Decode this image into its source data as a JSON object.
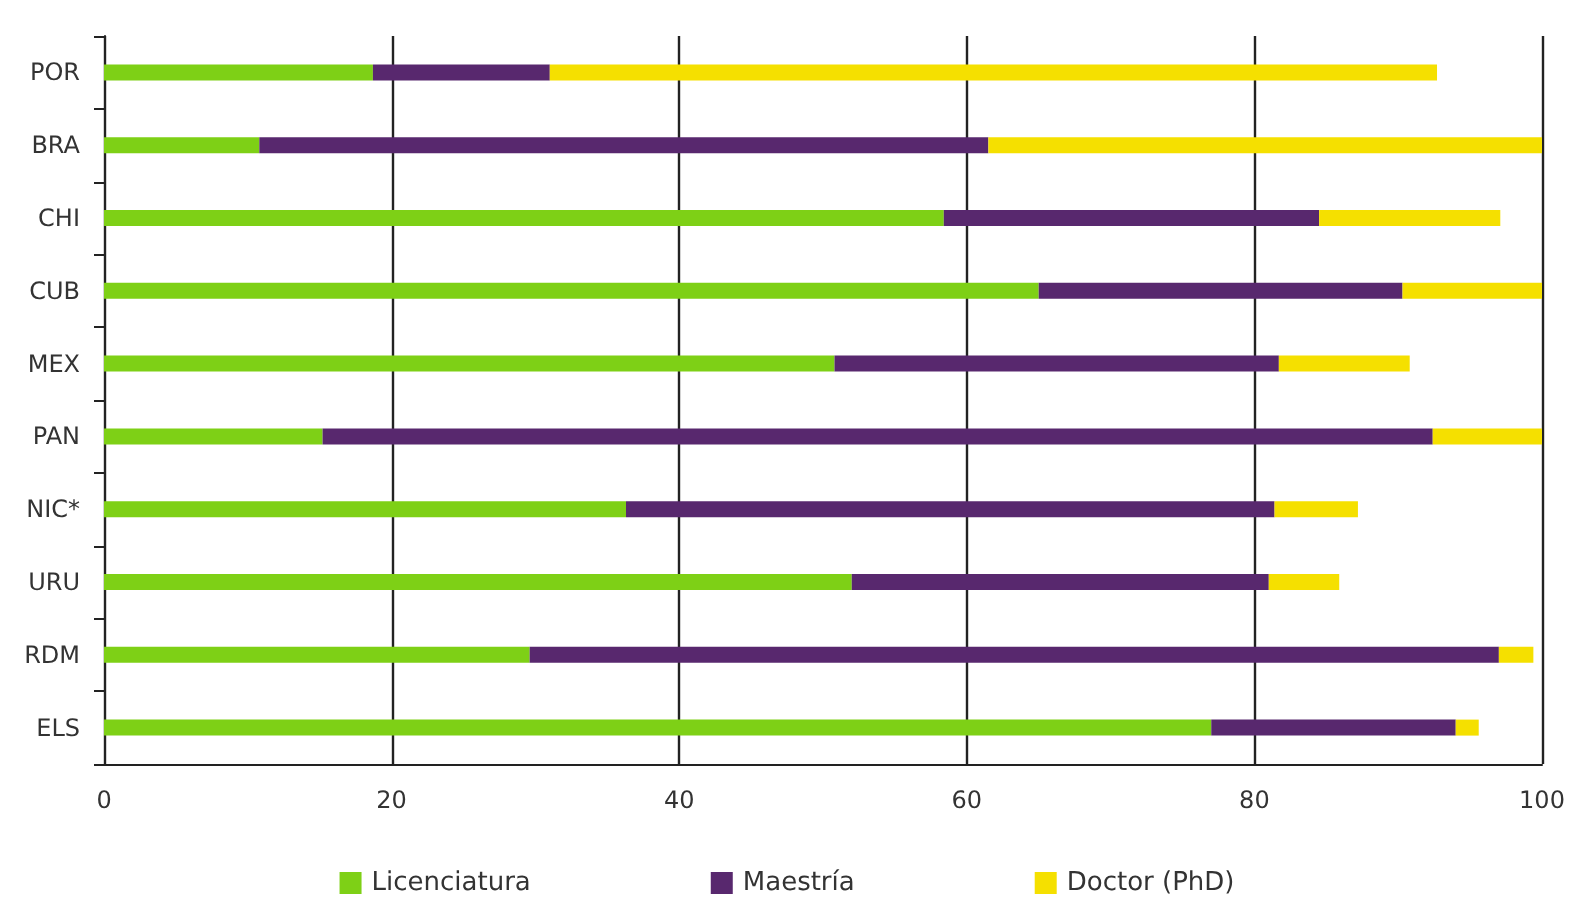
{
  "chart_data": {
    "type": "bar",
    "orientation": "horizontal",
    "stacked": true,
    "categories": [
      "POR",
      "BRA",
      "CHI",
      "CUB",
      "MEX",
      "PAN",
      "NIC*",
      "URU",
      "RDM",
      "ELS"
    ],
    "series": [
      {
        "name": "Licenciatura",
        "color": "#7ed016",
        "values": [
          18.7,
          10.8,
          58.4,
          65.0,
          50.8,
          15.2,
          36.3,
          52.0,
          29.6,
          77.0
        ]
      },
      {
        "name": "Maestría",
        "color": "#58286e",
        "values": [
          12.3,
          50.7,
          26.1,
          25.3,
          30.9,
          77.2,
          45.1,
          29.0,
          67.4,
          17.0
        ]
      },
      {
        "name": "Doctor (PhD)",
        "color": "#f5e000",
        "values": [
          61.7,
          38.5,
          12.6,
          9.7,
          9.1,
          7.6,
          5.8,
          4.9,
          2.4,
          1.6
        ]
      }
    ],
    "xlim": [
      0,
      100
    ],
    "xticks": [
      0,
      20,
      40,
      60,
      80,
      100
    ],
    "grid": "x",
    "legend": "bottom"
  }
}
